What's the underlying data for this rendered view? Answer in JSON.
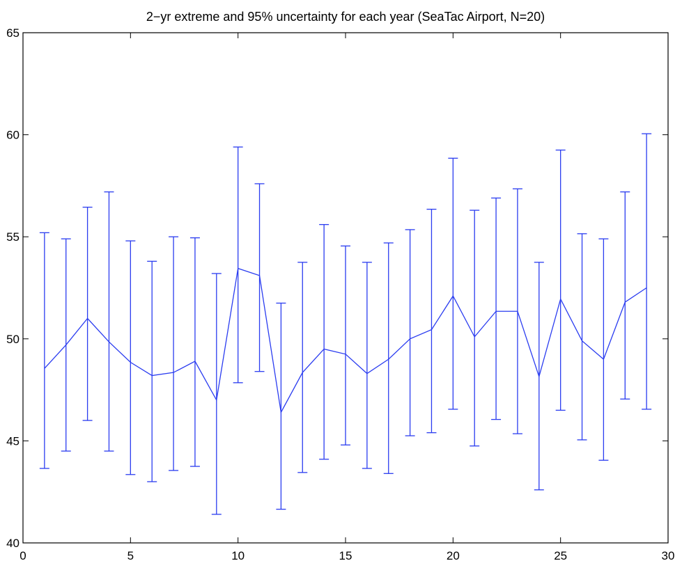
{
  "chart_data": {
    "type": "line",
    "title": "2−yr extreme and 95% uncertainty for each year (SeaTac Airport, N=20)",
    "xlabel": "",
    "ylabel": "",
    "xlim": [
      0,
      30
    ],
    "ylim": [
      40,
      65
    ],
    "xticks": [
      "0",
      "5",
      "10",
      "15",
      "20",
      "25",
      "30"
    ],
    "yticks": [
      "40",
      "45",
      "50",
      "55",
      "60",
      "65"
    ],
    "grid": false,
    "series": [
      {
        "color": "#2a3cf0",
        "x": [
          1,
          2,
          3,
          4,
          5,
          6,
          7,
          8,
          9,
          10,
          11,
          12,
          13,
          14,
          15,
          16,
          17,
          18,
          19,
          20,
          21,
          22,
          23,
          24,
          25,
          26,
          27,
          28,
          29
        ],
        "values": [
          48.55,
          49.7,
          51.0,
          49.85,
          48.85,
          48.2,
          48.35,
          48.9,
          47.0,
          53.45,
          53.1,
          46.4,
          48.35,
          49.5,
          49.25,
          48.3,
          49.0,
          50.0,
          50.45,
          52.1,
          50.1,
          51.35,
          51.35,
          48.15,
          51.95,
          49.9,
          49.0,
          51.8,
          52.5
        ],
        "lower": [
          43.65,
          44.5,
          46.0,
          44.5,
          43.35,
          43.0,
          43.55,
          43.75,
          41.4,
          47.85,
          48.4,
          41.65,
          43.45,
          44.1,
          44.8,
          43.65,
          43.4,
          45.25,
          45.4,
          46.55,
          44.75,
          46.05,
          45.35,
          42.6,
          46.5,
          45.05,
          44.05,
          47.05,
          46.55
        ],
        "upper": [
          55.2,
          54.9,
          56.45,
          57.2,
          54.8,
          53.8,
          55.0,
          54.95,
          53.2,
          59.4,
          57.6,
          51.75,
          53.75,
          55.6,
          54.55,
          53.75,
          54.7,
          55.35,
          56.35,
          58.85,
          56.3,
          56.9,
          57.35,
          53.75,
          59.25,
          55.15,
          54.9,
          57.2,
          60.05
        ]
      }
    ]
  }
}
